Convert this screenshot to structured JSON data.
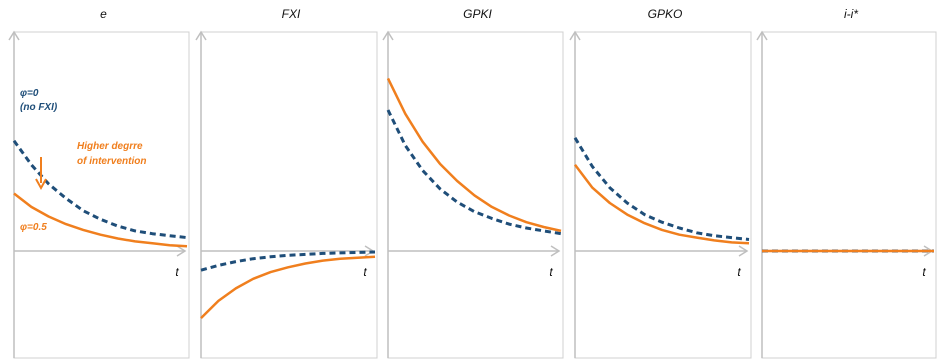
{
  "colors": {
    "blue": "#1f4e79",
    "orange": "#f07f1e",
    "axis": "#bfbfbf",
    "frame": "#d0d0d0"
  },
  "chart_data": [
    {
      "type": "line",
      "title": "e",
      "xlabel": "t",
      "x": [
        0,
        1,
        2,
        3,
        4,
        5,
        6,
        7,
        8,
        9,
        10
      ],
      "ylim": [
        -100,
        220
      ],
      "series": [
        {
          "name": "φ=0 (no FXI)",
          "style": "dashed",
          "color": "#1f4e79",
          "values": [
            115,
            90,
            70,
            55,
            42,
            33,
            26,
            21,
            18,
            16,
            14
          ]
        },
        {
          "name": "φ=0.5",
          "style": "solid",
          "color": "#f07f1e",
          "values": [
            60,
            46,
            36,
            28,
            22,
            17,
            13,
            10,
            8,
            6,
            5
          ]
        }
      ],
      "annotations": [
        {
          "text": "φ=0",
          "color": "#1f4e79"
        },
        {
          "text": "(no FXI)",
          "color": "#1f4e79"
        },
        {
          "text": "Higher degrre",
          "color": "#f07f1e"
        },
        {
          "text": "of intervention",
          "color": "#f07f1e"
        },
        {
          "text": "φ=0.5",
          "color": "#f07f1e"
        }
      ]
    },
    {
      "type": "line",
      "title": "FXI",
      "xlabel": "t",
      "x": [
        0,
        1,
        2,
        3,
        4,
        5,
        6,
        7,
        8,
        9,
        10
      ],
      "ylim": [
        -100,
        220
      ],
      "series": [
        {
          "style": "dashed",
          "color": "#1f4e79",
          "values": [
            -20,
            -15,
            -11,
            -8,
            -6,
            -4.5,
            -3.5,
            -2.5,
            -2,
            -1.5,
            -1
          ]
        },
        {
          "style": "solid",
          "color": "#f07f1e",
          "values": [
            -70,
            -52,
            -39,
            -29,
            -22,
            -17,
            -13,
            -10,
            -8,
            -7,
            -6
          ]
        }
      ]
    },
    {
      "type": "line",
      "title": "GPKI",
      "xlabel": "t",
      "x": [
        0,
        1,
        2,
        3,
        4,
        5,
        6,
        7,
        8,
        9,
        10
      ],
      "ylim": [
        -100,
        220
      ],
      "series": [
        {
          "style": "dashed",
          "color": "#1f4e79",
          "values": [
            147,
            110,
            84,
            65,
            51,
            41,
            34,
            28,
            24,
            21,
            18
          ]
        },
        {
          "style": "solid",
          "color": "#f07f1e",
          "values": [
            180,
            143,
            114,
            91,
            73,
            58,
            46,
            37,
            30,
            25,
            21
          ]
        }
      ]
    },
    {
      "type": "line",
      "title": "GPKO",
      "xlabel": "t",
      "x": [
        0,
        1,
        2,
        3,
        4,
        5,
        6,
        7,
        8,
        9,
        10
      ],
      "ylim": [
        -100,
        220
      ],
      "series": [
        {
          "style": "dashed",
          "color": "#1f4e79",
          "values": [
            118,
            88,
            66,
            50,
            38,
            30,
            24,
            19,
            16,
            14,
            12
          ]
        },
        {
          "style": "solid",
          "color": "#f07f1e",
          "values": [
            90,
            66,
            50,
            38,
            29,
            22,
            17,
            14,
            11,
            9,
            8
          ]
        }
      ]
    },
    {
      "type": "line",
      "title": "i-i*",
      "xlabel": "t",
      "x": [
        0,
        1,
        2,
        3,
        4,
        5,
        6,
        7,
        8,
        9,
        10
      ],
      "ylim": [
        -100,
        220
      ],
      "series": [
        {
          "style": "dashed",
          "color": "#1f4e79",
          "values": [
            0,
            0,
            0,
            0,
            0,
            0,
            0,
            0,
            0,
            0,
            0
          ]
        },
        {
          "style": "solid",
          "color": "#f07f1e",
          "values": [
            0,
            0,
            0,
            0,
            0,
            0,
            0,
            0,
            0,
            0,
            0
          ]
        }
      ]
    }
  ]
}
